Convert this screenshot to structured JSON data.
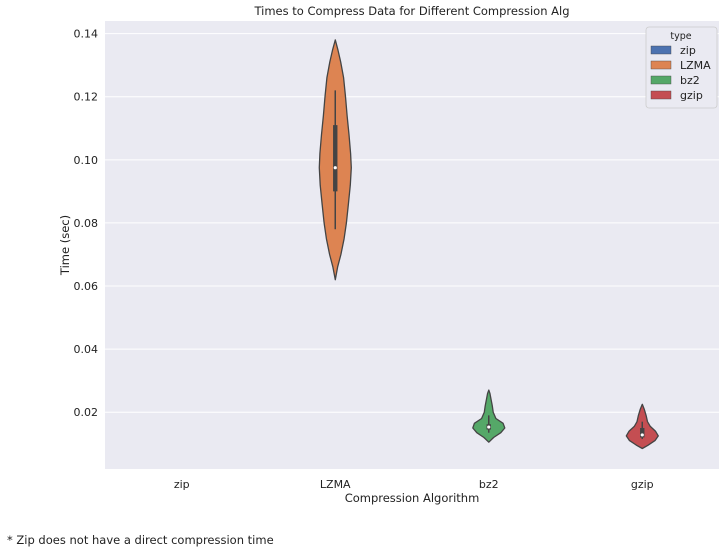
{
  "chart_data": {
    "type": "violin",
    "title": "Times to Compress Data for Different Compression Alg",
    "xlabel": "Compression Algorithm",
    "ylabel": "Time (sec)",
    "categories": [
      "zip",
      "LZMA",
      "bz2",
      "gzip"
    ],
    "ylim": [
      0.002,
      0.144
    ],
    "yticks": [
      0.02,
      0.04,
      0.06,
      0.08,
      0.1,
      0.12,
      0.14
    ],
    "ytick_labels": [
      "0.02",
      "0.04",
      "0.06",
      "0.08",
      "0.10",
      "0.12",
      "0.14"
    ],
    "grid": true,
    "legend": {
      "title": "type",
      "placement": "top-right",
      "entries": [
        {
          "label": "zip",
          "color": "#4c72b0"
        },
        {
          "label": "LZMA",
          "color": "#dd8452"
        },
        {
          "label": "bz2",
          "color": "#55a868"
        },
        {
          "label": "gzip",
          "color": "#c44e52"
        }
      ]
    },
    "series": [
      {
        "name": "zip",
        "color": "#4c72b0",
        "values": null
      },
      {
        "name": "LZMA",
        "color": "#dd8452",
        "min": 0.062,
        "q1": 0.09,
        "median": 0.0975,
        "q3": 0.111,
        "max": 0.138,
        "whisker_low": 0.078,
        "whisker_high": 0.122,
        "profile": [
          [
            0.062,
            0.0
          ],
          [
            0.066,
            0.15
          ],
          [
            0.07,
            0.35
          ],
          [
            0.075,
            0.55
          ],
          [
            0.08,
            0.7
          ],
          [
            0.086,
            0.82
          ],
          [
            0.092,
            0.94
          ],
          [
            0.0975,
            1.0
          ],
          [
            0.102,
            0.96
          ],
          [
            0.108,
            0.86
          ],
          [
            0.114,
            0.74
          ],
          [
            0.12,
            0.64
          ],
          [
            0.126,
            0.52
          ],
          [
            0.131,
            0.34
          ],
          [
            0.135,
            0.16
          ],
          [
            0.138,
            0.0
          ]
        ]
      },
      {
        "name": "bz2",
        "color": "#55a868",
        "min": 0.0105,
        "q1": 0.0145,
        "median": 0.0153,
        "q3": 0.0162,
        "max": 0.027,
        "whisker_low": 0.0135,
        "whisker_high": 0.019,
        "profile": [
          [
            0.0105,
            0.0
          ],
          [
            0.012,
            0.3
          ],
          [
            0.0135,
            0.75
          ],
          [
            0.015,
            1.0
          ],
          [
            0.0165,
            0.9
          ],
          [
            0.018,
            0.45
          ],
          [
            0.02,
            0.28
          ],
          [
            0.022,
            0.22
          ],
          [
            0.024,
            0.15
          ],
          [
            0.026,
            0.07
          ],
          [
            0.027,
            0.0
          ]
        ]
      },
      {
        "name": "gzip",
        "color": "#c44e52",
        "min": 0.0085,
        "q1": 0.012,
        "median": 0.0128,
        "q3": 0.015,
        "max": 0.0225,
        "whisker_low": 0.0115,
        "whisker_high": 0.017,
        "profile": [
          [
            0.0085,
            0.0
          ],
          [
            0.0095,
            0.35
          ],
          [
            0.011,
            0.8
          ],
          [
            0.0125,
            1.0
          ],
          [
            0.014,
            0.82
          ],
          [
            0.0155,
            0.5
          ],
          [
            0.017,
            0.33
          ],
          [
            0.019,
            0.24
          ],
          [
            0.021,
            0.12
          ],
          [
            0.0225,
            0.0
          ]
        ]
      }
    ]
  },
  "footnote": "* Zip does not have a direct compression time"
}
